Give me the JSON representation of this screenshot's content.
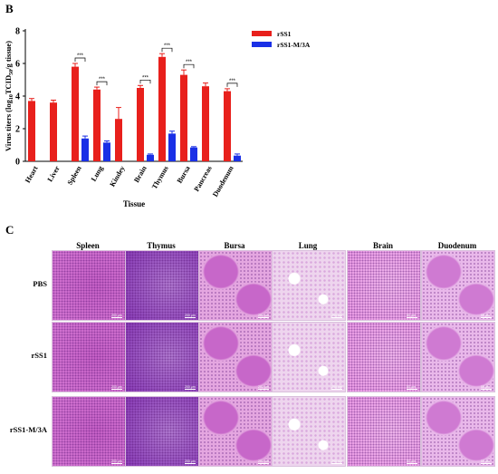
{
  "panel_b": {
    "letter": "B",
    "chart_data": {
      "type": "bar",
      "categories": [
        "Heart",
        "Liver",
        "Spleen",
        "Lung",
        "Kindey",
        "Brain",
        "Thymus",
        "Bursa",
        "Pancreas",
        "Duodenum"
      ],
      "series": [
        {
          "name": "rSS1",
          "color": "#e8201c",
          "values": [
            3.7,
            3.6,
            5.8,
            4.4,
            2.6,
            4.5,
            6.4,
            5.3,
            4.6,
            4.3
          ],
          "errors": [
            0.15,
            0.15,
            0.2,
            0.15,
            0.7,
            0.15,
            0.2,
            0.3,
            0.2,
            0.15
          ]
        },
        {
          "name": "rSS1-M/3A",
          "color": "#1a30e6",
          "values": [
            null,
            null,
            1.4,
            1.15,
            null,
            0.4,
            1.7,
            0.85,
            null,
            0.35
          ],
          "errors": [
            0,
            0,
            0.15,
            0.1,
            0,
            0.05,
            0.15,
            0.05,
            0,
            0.1
          ]
        }
      ],
      "significance": [
        "",
        "",
        "***",
        "***",
        "",
        "***",
        "***",
        "***",
        "",
        "***"
      ],
      "ylabel_prefix": "Virus titers (log",
      "ylabel_sub": "10",
      "ylabel_mid": "TCID",
      "ylabel_sub2": "50",
      "ylabel_suffix": "/g tissue)",
      "xlabel": "Tissue",
      "yticks": [
        0,
        2,
        4,
        6,
        8
      ],
      "ylim": [
        0,
        8
      ],
      "grid": false,
      "legend_position": "top-right"
    }
  },
  "panel_c": {
    "letter": "C",
    "columns": [
      "Spleen",
      "Thymus",
      "Bursa",
      "Lung",
      "Brain",
      "Duodenum"
    ],
    "rows": [
      "PBS",
      "rSS1",
      "rSS1-M/3A"
    ],
    "scale_labels": [
      "200 μm",
      "200 μm",
      "200 μm",
      "200 μm",
      "50 μm",
      "50 μm"
    ]
  }
}
